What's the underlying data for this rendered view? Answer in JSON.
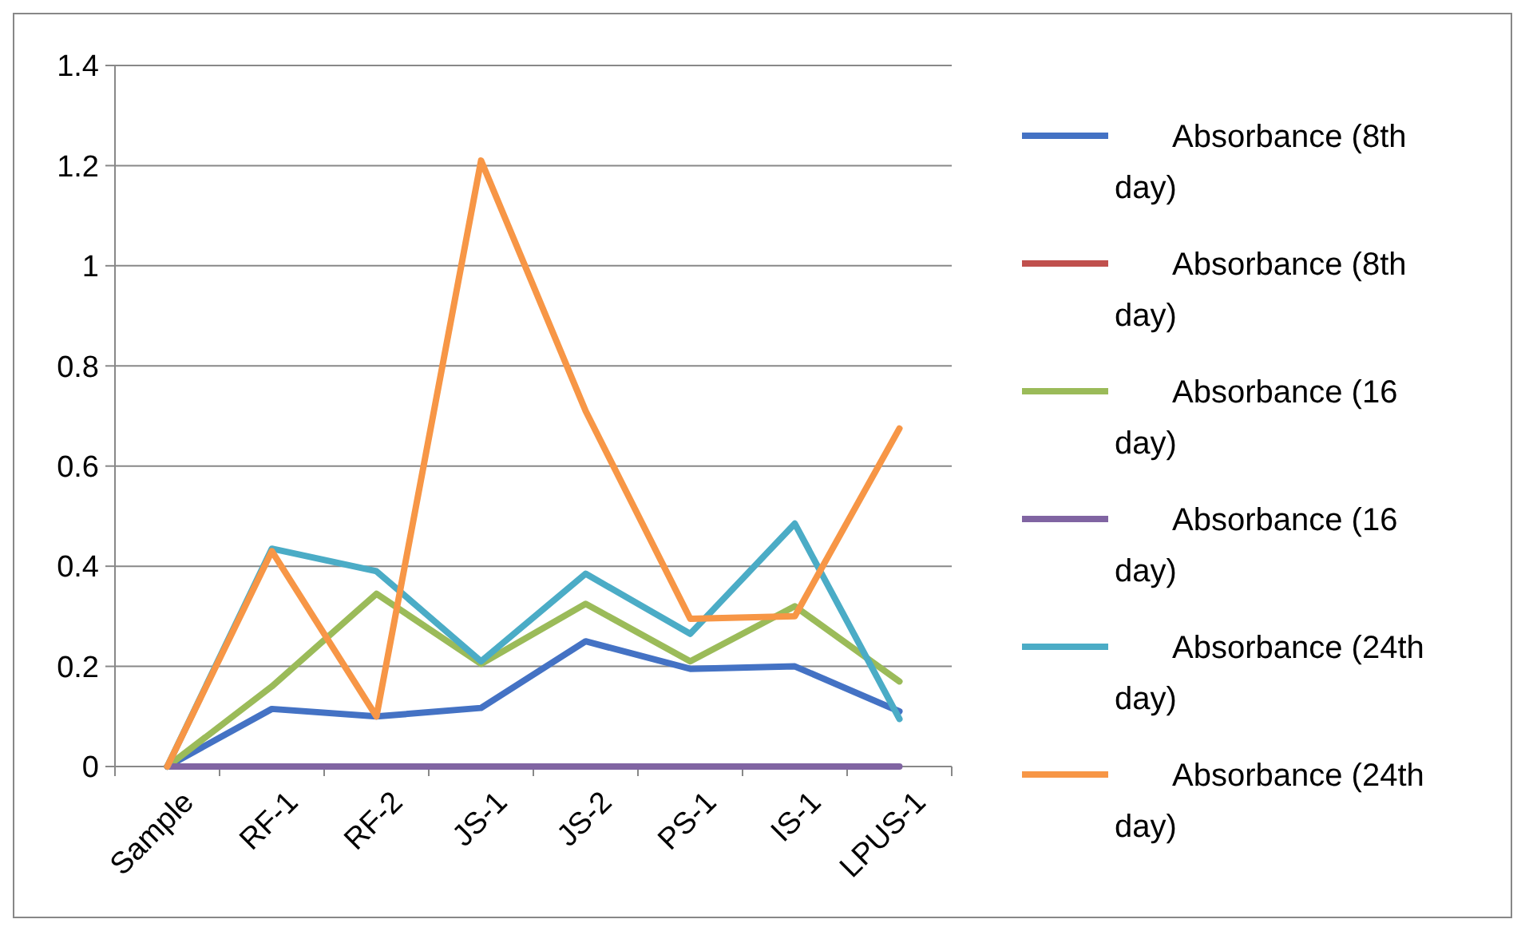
{
  "chart_data": {
    "type": "line",
    "categories": [
      "Sample",
      "RF-1",
      "RF-2",
      "JS-1",
      "JS-2",
      "PS-1",
      "IS-1",
      "LPUS-1"
    ],
    "series": [
      {
        "name": "Absorbance (8th day)",
        "color": "#4472c4",
        "values": [
          0,
          0.115,
          0.1,
          0.117,
          0.25,
          0.195,
          0.2,
          0.11
        ]
      },
      {
        "name": "Absorbance (8th day)",
        "color": "#c0504d",
        "values": [
          null,
          null,
          null,
          null,
          null,
          null,
          null,
          null
        ]
      },
      {
        "name": "Absorbance (16 day)",
        "color": "#9bbb59",
        "values": [
          0,
          0.16,
          0.345,
          0.205,
          0.325,
          0.21,
          0.32,
          0.17
        ]
      },
      {
        "name": "Absorbance (16 day)",
        "color": "#8064a2",
        "values": [
          0,
          0,
          0,
          0,
          0,
          0,
          0,
          0
        ]
      },
      {
        "name": "Absorbance (24th day)",
        "color": "#4bacc6",
        "values": [
          0,
          0.435,
          0.39,
          0.21,
          0.385,
          0.265,
          0.485,
          0.095
        ]
      },
      {
        "name": "Absorbance (24th day)",
        "color": "#f79646",
        "values": [
          0,
          0.43,
          0.1,
          1.21,
          0.71,
          0.295,
          0.3,
          0.675
        ]
      }
    ],
    "ylim": [
      0,
      1.4
    ],
    "yticks": [
      0,
      0.2,
      0.4,
      0.6,
      0.8,
      1,
      1.2,
      1.4
    ],
    "grid": "y",
    "legend": "right",
    "marker": "none",
    "line_style": "solid"
  }
}
